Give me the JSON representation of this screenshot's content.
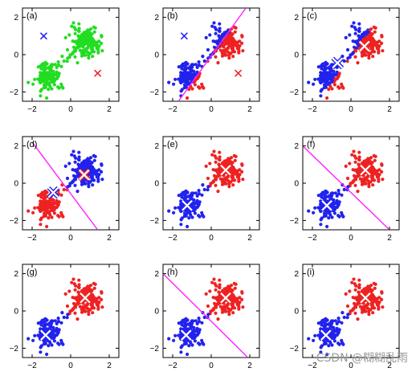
{
  "watermark": "CSDN @糊糊乱雨",
  "colors": {
    "cluster1": "#2222ee",
    "cluster2": "#ee2222",
    "unassigned": "#22dd22",
    "boundary": "#ff22ff",
    "axis": "#000000",
    "centroid_initial_1": "#2222ee",
    "centroid_initial_2": "#ee2222",
    "centroid_updated": "#ffffff"
  },
  "chart_data": [
    {
      "type": "scatter",
      "panel_label": "(a)",
      "xlim": [
        -2.5,
        2.5
      ],
      "ylim": [
        -2.5,
        2.5
      ],
      "x_ticks": [
        -2,
        0,
        2
      ],
      "y_ticks": [
        -2,
        0,
        2
      ],
      "boundary": null,
      "assignment": "none",
      "centroids": [
        [
          -1.4,
          1.0
        ],
        [
          1.4,
          -1.0
        ]
      ],
      "centroid_style": "initial"
    },
    {
      "type": "scatter",
      "panel_label": "(b)",
      "xlim": [
        -2.5,
        2.5
      ],
      "ylim": [
        -2.5,
        2.5
      ],
      "x_ticks": [
        -2,
        0,
        2
      ],
      "y_ticks": [
        -2,
        0,
        2
      ],
      "boundary": [
        [
          -1.7,
          -2.5
        ],
        [
          1.8,
          2.5
        ]
      ],
      "assignment": "boundary",
      "centroids": [
        [
          -1.4,
          1.0
        ],
        [
          1.4,
          -1.0
        ]
      ],
      "centroid_style": "initial"
    },
    {
      "type": "scatter",
      "panel_label": "(c)",
      "xlim": [
        -2.5,
        2.5
      ],
      "ylim": [
        -2.5,
        2.5
      ],
      "x_ticks": [
        -2,
        0,
        2
      ],
      "y_ticks": [
        -2,
        0,
        2
      ],
      "boundary": null,
      "assignment": "boundary_b",
      "centroids": [
        [
          -0.7,
          -0.45
        ],
        [
          0.7,
          0.45
        ]
      ],
      "centroid_style": "updated"
    },
    {
      "type": "scatter",
      "panel_label": "(d)",
      "xlim": [
        -2.5,
        2.5
      ],
      "ylim": [
        -2.5,
        2.5
      ],
      "x_ticks": [
        -2,
        0,
        2
      ],
      "y_ticks": [
        -2,
        0,
        2
      ],
      "boundary": [
        [
          -2.0,
          2.2
        ],
        [
          1.4,
          -2.5
        ]
      ],
      "assignment": "boundary",
      "centroids": [
        [
          -0.9,
          -0.5
        ],
        [
          0.7,
          0.45
        ]
      ],
      "centroid_style": "updated"
    },
    {
      "type": "scatter",
      "panel_label": "(e)",
      "xlim": [
        -2.5,
        2.5
      ],
      "ylim": [
        -2.5,
        2.5
      ],
      "x_ticks": [
        -2,
        0,
        2
      ],
      "y_ticks": [
        -2,
        0,
        2
      ],
      "boundary": null,
      "assignment": "true",
      "centroids": [
        [
          -1.25,
          -1.2
        ],
        [
          0.75,
          0.7
        ]
      ],
      "centroid_style": "updated"
    },
    {
      "type": "scatter",
      "panel_label": "(f)",
      "xlim": [
        -2.5,
        2.5
      ],
      "ylim": [
        -2.5,
        2.5
      ],
      "x_ticks": [
        -2,
        0,
        2
      ],
      "y_ticks": [
        -2,
        0,
        2
      ],
      "boundary": [
        [
          -2.5,
          2.0
        ],
        [
          2.0,
          -2.5
        ]
      ],
      "assignment": "true",
      "centroids": [
        [
          -1.25,
          -1.2
        ],
        [
          0.75,
          0.7
        ]
      ],
      "centroid_style": "updated"
    },
    {
      "type": "scatter",
      "panel_label": "(g)",
      "xlim": [
        -2.5,
        2.5
      ],
      "ylim": [
        -2.5,
        2.5
      ],
      "x_ticks": [
        -2,
        0,
        2
      ],
      "y_ticks": [
        -2,
        0,
        2
      ],
      "boundary": null,
      "assignment": "true",
      "centroids": [
        [
          -1.3,
          -1.3
        ],
        [
          0.75,
          0.7
        ]
      ],
      "centroid_style": "updated"
    },
    {
      "type": "scatter",
      "panel_label": "(h)",
      "xlim": [
        -2.5,
        2.5
      ],
      "ylim": [
        -2.5,
        2.5
      ],
      "x_ticks": [
        -2,
        0,
        2
      ],
      "y_ticks": [
        -2,
        0,
        2
      ],
      "boundary": [
        [
          -2.5,
          2.0
        ],
        [
          1.9,
          -2.5
        ]
      ],
      "assignment": "true",
      "centroids": [
        [
          -1.3,
          -1.3
        ],
        [
          0.75,
          0.7
        ]
      ],
      "centroid_style": "updated"
    },
    {
      "type": "scatter",
      "panel_label": "(i)",
      "xlim": [
        -2.5,
        2.5
      ],
      "ylim": [
        -2.5,
        2.5
      ],
      "x_ticks": [
        -2,
        0,
        2
      ],
      "y_ticks": [
        -2,
        0,
        2
      ],
      "boundary": null,
      "assignment": "true",
      "centroids": [
        [
          -1.3,
          -1.3
        ],
        [
          0.75,
          0.7
        ]
      ],
      "centroid_style": "updated"
    }
  ]
}
